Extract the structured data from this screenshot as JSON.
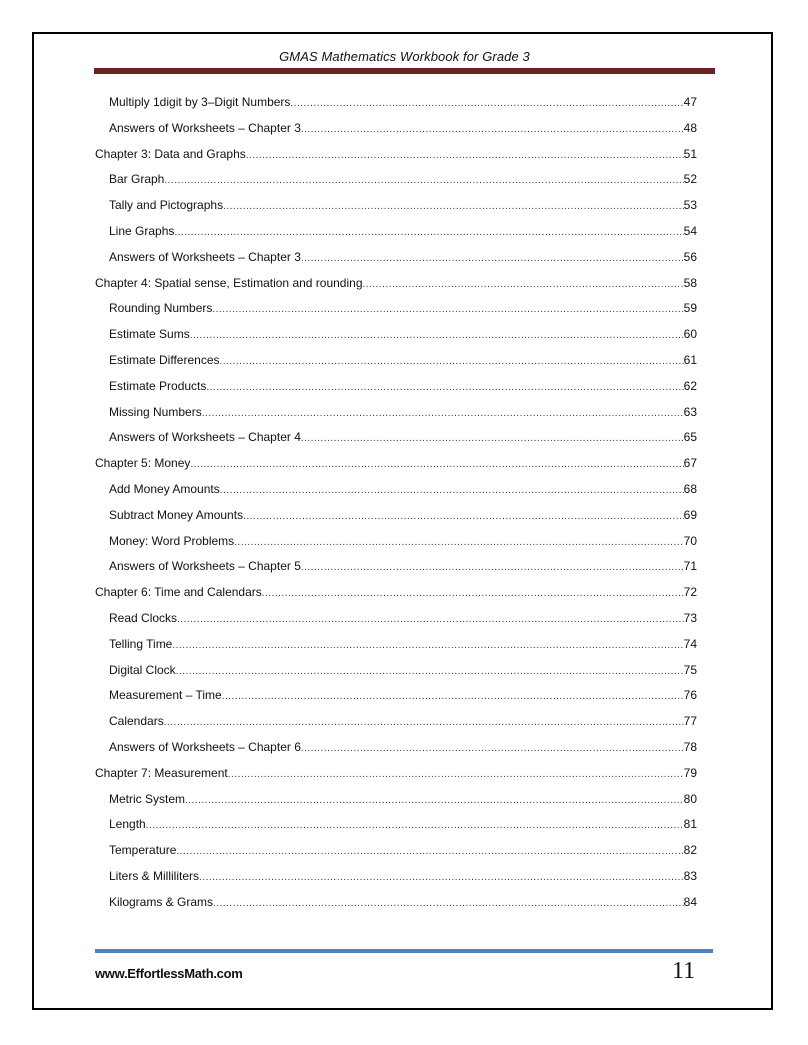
{
  "header": {
    "title": "GMAS Mathematics Workbook for Grade 3"
  },
  "toc": [
    {
      "label": "Multiply 1digit by 3–Digit Numbers",
      "page": "47",
      "level": 2
    },
    {
      "label": "Answers of Worksheets – Chapter 3",
      "page": "48",
      "level": 2
    },
    {
      "label": "Chapter 3: Data and Graphs",
      "page": "51",
      "level": 1
    },
    {
      "label": "Bar Graph",
      "page": "52",
      "level": 2
    },
    {
      "label": "Tally and Pictographs",
      "page": "53",
      "level": 2
    },
    {
      "label": "Line Graphs",
      "page": "54",
      "level": 2
    },
    {
      "label": "Answers of Worksheets – Chapter 3",
      "page": "56",
      "level": 2
    },
    {
      "label": "Chapter 4: Spatial sense, Estimation and rounding",
      "page": "58",
      "level": 1
    },
    {
      "label": "Rounding Numbers",
      "page": "59",
      "level": 2
    },
    {
      "label": "Estimate Sums",
      "page": "60",
      "level": 2
    },
    {
      "label": "Estimate Differences",
      "page": "61",
      "level": 2
    },
    {
      "label": "Estimate Products",
      "page": "62",
      "level": 2
    },
    {
      "label": "Missing Numbers",
      "page": "63",
      "level": 2
    },
    {
      "label": "Answers of Worksheets – Chapter 4",
      "page": "65",
      "level": 2
    },
    {
      "label": "Chapter 5: Money",
      "page": "67",
      "level": 1
    },
    {
      "label": "Add Money Amounts",
      "page": "68",
      "level": 2
    },
    {
      "label": "Subtract Money Amounts",
      "page": "69",
      "level": 2
    },
    {
      "label": "Money: Word Problems",
      "page": "70",
      "level": 2
    },
    {
      "label": "Answers of Worksheets – Chapter 5",
      "page": "71",
      "level": 2
    },
    {
      "label": "Chapter 6: Time and Calendars",
      "page": "72",
      "level": 1
    },
    {
      "label": "Read Clocks",
      "page": "73",
      "level": 2
    },
    {
      "label": "Telling Time",
      "page": "74",
      "level": 2
    },
    {
      "label": "Digital Clock",
      "page": "75",
      "level": 2
    },
    {
      "label": "Measurement – Time",
      "page": "76",
      "level": 2
    },
    {
      "label": "Calendars",
      "page": "77",
      "level": 2
    },
    {
      "label": "Answers of Worksheets – Chapter 6",
      "page": "78",
      "level": 2
    },
    {
      "label": "Chapter 7: Measurement",
      "page": "79",
      "level": 1
    },
    {
      "label": "Metric System",
      "page": "80",
      "level": 2
    },
    {
      "label": "Length",
      "page": "81",
      "level": 2
    },
    {
      "label": "Temperature",
      "page": "82",
      "level": 2
    },
    {
      "label": "Liters & Milliliters",
      "page": "83",
      "level": 2
    },
    {
      "label": "Kilograms & Grams",
      "page": "84",
      "level": 2
    }
  ],
  "footer": {
    "url": "www.EffortlessMath.com",
    "page_number": "11"
  },
  "colors": {
    "header_bar": "#6b2222",
    "footer_bar": "#4f81bd"
  }
}
